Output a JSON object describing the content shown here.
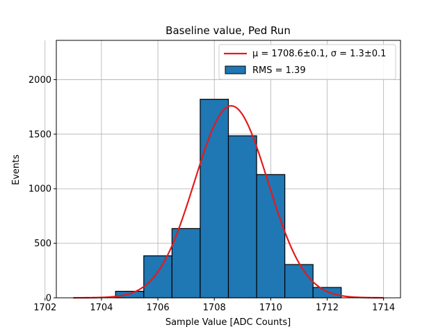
{
  "chart_data": {
    "type": "bar",
    "title": "Baseline value, Ped Run",
    "xlabel": "Sample Value [ADC Counts]",
    "ylabel": "Events",
    "xlim": [
      1702.4,
      1714.6
    ],
    "ylim": [
      0,
      2360
    ],
    "xticks": [
      1702,
      1704,
      1706,
      1708,
      1710,
      1712,
      1714
    ],
    "yticks": [
      0,
      500,
      1000,
      1500,
      2000
    ],
    "grid": true,
    "legend_position": "top-right",
    "histogram": {
      "name": "RMS = 1.39",
      "color": "#1f77b4",
      "edge_color": "#000000",
      "bins": [
        {
          "x0": 1704.5,
          "x1": 1705.5,
          "count": 60
        },
        {
          "x0": 1705.5,
          "x1": 1706.5,
          "count": 385
        },
        {
          "x0": 1706.5,
          "x1": 1707.5,
          "count": 635
        },
        {
          "x0": 1707.5,
          "x1": 1708.5,
          "count": 1820
        },
        {
          "x0": 1708.5,
          "x1": 1709.5,
          "count": 1485
        },
        {
          "x0": 1709.5,
          "x1": 1710.5,
          "count": 1130
        },
        {
          "x0": 1710.5,
          "x1": 1711.5,
          "count": 305
        },
        {
          "x0": 1711.5,
          "x1": 1712.5,
          "count": 95
        }
      ]
    },
    "fit": {
      "name": "μ = 1708.6±0.1, σ = 1.3±0.1",
      "color": "#e41a1c",
      "mu": 1708.6,
      "sigma": 1.3,
      "amplitude": 1760,
      "x_range": [
        1703.0,
        1714.0
      ]
    }
  }
}
